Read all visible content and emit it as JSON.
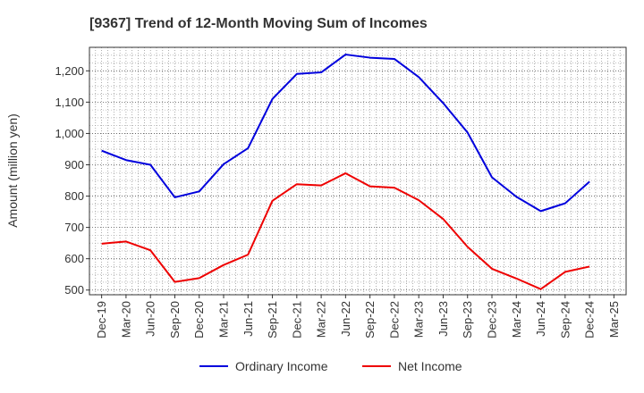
{
  "chart_data": {
    "type": "line",
    "title": "[9367]  Trend of 12-Month Moving Sum of Incomes",
    "xlabel": "",
    "ylabel": "Amount (million yen)",
    "ylim": [
      485,
      1275
    ],
    "yticks": [
      500,
      600,
      700,
      800,
      900,
      1000,
      1100,
      1200
    ],
    "ytick_labels": [
      "500",
      "600",
      "700",
      "800",
      "900",
      "1,000",
      "1,100",
      "1,200"
    ],
    "categories": [
      "Dec-19",
      "Mar-20",
      "Jun-20",
      "Sep-20",
      "Dec-20",
      "Mar-21",
      "Jun-21",
      "Sep-21",
      "Dec-21",
      "Mar-22",
      "Jun-22",
      "Sep-22",
      "Dec-22",
      "Mar-23",
      "Jun-23",
      "Sep-23",
      "Dec-23",
      "Mar-24",
      "Jun-24",
      "Sep-24",
      "Dec-24",
      "Mar-25"
    ],
    "grid": true,
    "legend_position": "bottom",
    "series": [
      {
        "name": "Ordinary Income",
        "color": "#0000dd",
        "values": [
          945,
          915,
          900,
          796,
          815,
          902,
          953,
          1110,
          1190,
          1195,
          1252,
          1242,
          1238,
          1180,
          1097,
          1003,
          860,
          798,
          752,
          777,
          846,
          null
        ]
      },
      {
        "name": "Net Income",
        "color": "#ee0000",
        "values": [
          648,
          655,
          627,
          526,
          538,
          580,
          613,
          785,
          838,
          834,
          873,
          831,
          827,
          787,
          727,
          638,
          568,
          537,
          503,
          558,
          575,
          null
        ]
      }
    ]
  }
}
